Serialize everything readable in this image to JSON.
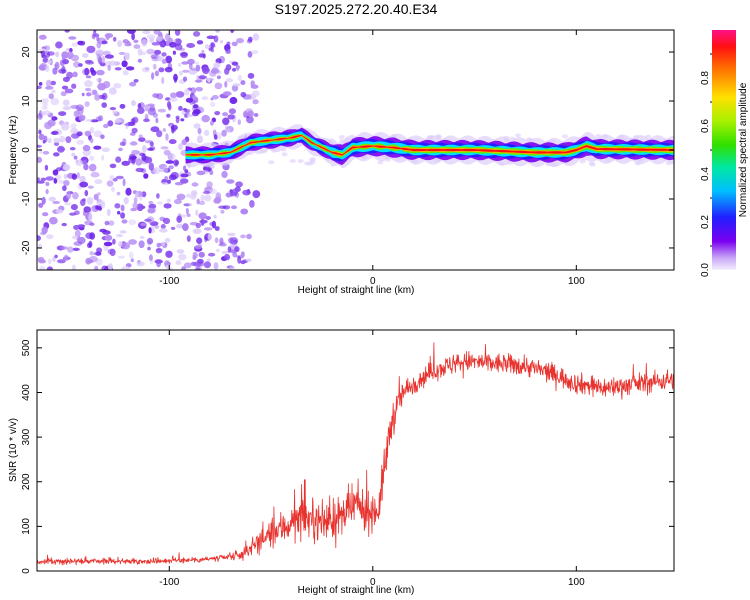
{
  "title": "S197.2025.272.20.40.E34",
  "colors": {
    "snr_line": "#e8322d",
    "band": [
      "#ff1010",
      "#ffb000",
      "#66ee00",
      "#00e0ff",
      "#2020ff",
      "#7a00f0"
    ],
    "noise": [
      "#6a1ee8",
      "#8a4cf0",
      "#b48af4",
      "#ddcdfa"
    ]
  },
  "spectrogram": {
    "type": "heatmap",
    "xlabel": "Height of straight line (km)",
    "ylabel": "Frequency (Hz)",
    "xlim": [
      -165,
      148
    ],
    "ylim": [
      -24.5,
      24.5
    ],
    "xticks": [
      {
        "v": -100,
        "label": "-100"
      },
      {
        "v": 0,
        "label": "0"
      },
      {
        "v": 100,
        "label": "100"
      }
    ],
    "yticks": [
      {
        "v": -20,
        "label": "-20"
      },
      {
        "v": -10,
        "label": "-10"
      },
      {
        "v": 0,
        "label": "0"
      },
      {
        "v": 10,
        "label": "10"
      },
      {
        "v": 20,
        "label": "20"
      }
    ],
    "noise_region_x": [
      -165,
      -65
    ],
    "band_start_x": -92,
    "band_center_hz": [
      [
        -92,
        -1.0
      ],
      [
        -80,
        -1.0
      ],
      [
        -70,
        -0.5
      ],
      [
        -60,
        1.5
      ],
      [
        -50,
        2.0
      ],
      [
        -40,
        2.5
      ],
      [
        -35,
        3.0
      ],
      [
        -30,
        1.5
      ],
      [
        -25,
        0.5
      ],
      [
        -20,
        -0.5
      ],
      [
        -15,
        -1.0
      ],
      [
        -10,
        0.5
      ],
      [
        0,
        0.8
      ],
      [
        10,
        0.5
      ],
      [
        20,
        0.0
      ],
      [
        50,
        0.0
      ],
      [
        80,
        -0.5
      ],
      [
        95,
        -0.5
      ],
      [
        100,
        0.0
      ],
      [
        105,
        0.8
      ],
      [
        110,
        0.2
      ],
      [
        148,
        0.0
      ]
    ]
  },
  "colorbar": {
    "label": "Normalized spectral amplitude",
    "ticks": [
      {
        "v": 0.0,
        "label": "0.0"
      },
      {
        "v": 0.2,
        "label": "0.2"
      },
      {
        "v": 0.4,
        "label": "0.4"
      },
      {
        "v": 0.6,
        "label": "0.6"
      },
      {
        "v": 0.8,
        "label": "0.8"
      }
    ],
    "range": [
      0,
      1
    ]
  },
  "chart_data": {
    "type": "line",
    "title": "S197.2025.272.20.40.E34",
    "xlabel": "Height of straight line (km)",
    "ylabel": "SNR (10 * v/v)",
    "xlim": [
      -165,
      148
    ],
    "ylim": [
      0,
      540
    ],
    "xticks": [
      {
        "v": -100,
        "label": "-100"
      },
      {
        "v": 0,
        "label": "0"
      },
      {
        "v": 100,
        "label": "100"
      }
    ],
    "yticks": [
      {
        "v": 0,
        "label": "0"
      },
      {
        "v": 100,
        "label": "100"
      },
      {
        "v": 200,
        "label": "200"
      },
      {
        "v": 300,
        "label": "300"
      },
      {
        "v": 400,
        "label": "400"
      },
      {
        "v": 500,
        "label": "500"
      }
    ],
    "series": [
      {
        "name": "SNR",
        "x": [
          -165,
          -150,
          -130,
          -110,
          -90,
          -75,
          -65,
          -55,
          -45,
          -35,
          -25,
          -15,
          -8,
          -3,
          3,
          6,
          9,
          12,
          15,
          20,
          30,
          45,
          60,
          75,
          90,
          100,
          115,
          130,
          140,
          148
        ],
        "values": [
          20,
          22,
          22,
          22,
          25,
          28,
          35,
          70,
          95,
          120,
          110,
          120,
          150,
          130,
          140,
          240,
          330,
          370,
          400,
          420,
          450,
          470,
          465,
          460,
          440,
          420,
          410,
          420,
          425,
          430
        ],
        "noise_amplitude": [
          8,
          8,
          8,
          8,
          8,
          10,
          14,
          35,
          50,
          55,
          55,
          60,
          60,
          55,
          55,
          60,
          55,
          45,
          35,
          30,
          30,
          30,
          30,
          30,
          30,
          30,
          30,
          30,
          30,
          30
        ]
      }
    ]
  }
}
